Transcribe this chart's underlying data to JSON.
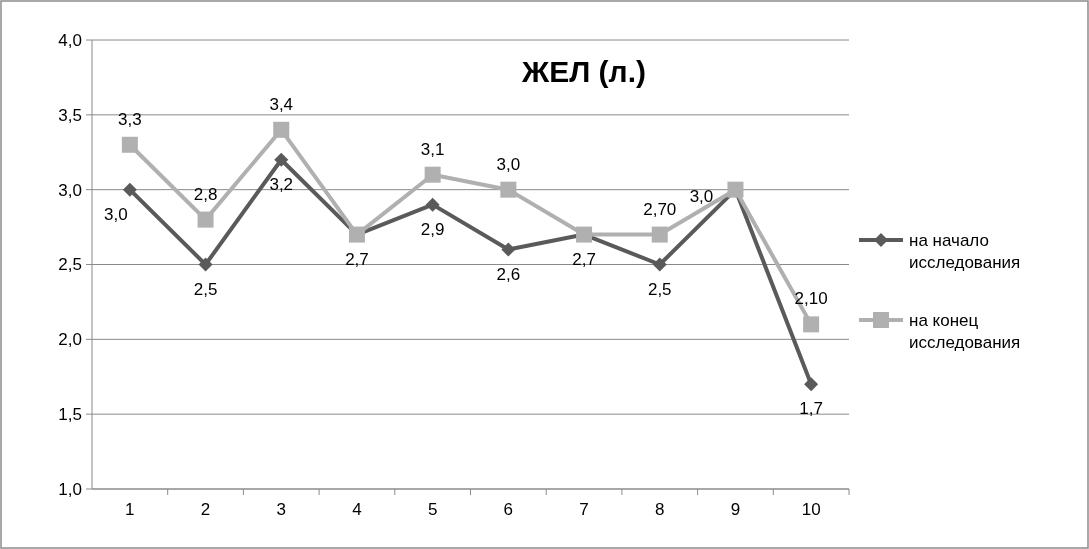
{
  "chart_data": {
    "type": "line",
    "title": "ЖЕЛ (л.)",
    "categories": [
      "1",
      "2",
      "3",
      "4",
      "5",
      "6",
      "7",
      "8",
      "9",
      "10"
    ],
    "series": [
      {
        "name": "на начало исследования",
        "color": "#5a5a5a",
        "marker": "diamond",
        "values": [
          3.0,
          2.5,
          3.2,
          2.7,
          2.9,
          2.6,
          2.7,
          2.5,
          3.0,
          1.7
        ],
        "value_labels": [
          "3,0",
          "2,5",
          "3,2",
          "2,7",
          "2,9",
          "2,6",
          "2,7",
          "2,5",
          "3,0",
          "1,7"
        ]
      },
      {
        "name": "на конец исследования",
        "color": "#b0b0b0",
        "marker": "square",
        "values": [
          3.3,
          2.8,
          3.4,
          2.7,
          3.1,
          3.0,
          2.7,
          2.7,
          3.0,
          2.1
        ],
        "value_labels": [
          "3,3",
          "2,8",
          "3,4",
          null,
          "3,1",
          "3,0",
          null,
          "2,70",
          null,
          "2,10"
        ]
      }
    ],
    "ylim": [
      1,
      4
    ],
    "yticks": [
      {
        "value": 1,
        "label": "1,0"
      },
      {
        "value": 1.5,
        "label": "1,5"
      },
      {
        "value": 2,
        "label": "2,0"
      },
      {
        "value": 2.5,
        "label": "2,5"
      },
      {
        "value": 3,
        "label": "3,0"
      },
      {
        "value": 3.5,
        "label": "3,5"
      },
      {
        "value": 4,
        "label": "4,0"
      }
    ],
    "grid": "y",
    "legend": "right",
    "line_style": "solid"
  }
}
